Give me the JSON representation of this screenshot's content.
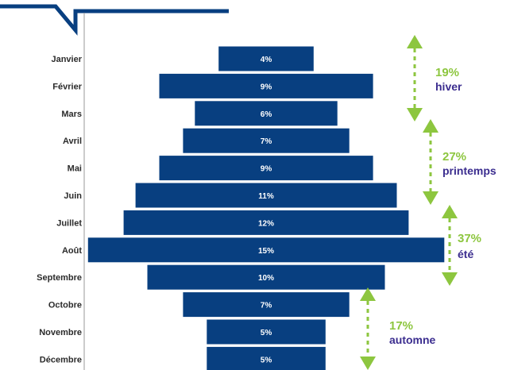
{
  "colors": {
    "bar": "#083f80",
    "accent_green": "#8dc63f",
    "season_text": "#3b2d8f",
    "axis": "#999999",
    "header": "#083f80"
  },
  "chart_data": {
    "type": "bar",
    "orientation": "horizontal-centered",
    "categories": [
      "Janvier",
      "Février",
      "Mars",
      "Avril",
      "Mai",
      "Juin",
      "Juillet",
      "Août",
      "Septembre",
      "Octobre",
      "Novembre",
      "Décembre"
    ],
    "values": [
      4,
      9,
      6,
      7,
      9,
      11,
      12,
      15,
      10,
      7,
      5,
      5
    ],
    "value_labels": [
      "4%",
      "9%",
      "6%",
      "7%",
      "9%",
      "11%",
      "12%",
      "15%",
      "10%",
      "7%",
      "5%",
      "5%"
    ],
    "unit": "%",
    "seasons": [
      {
        "pct": "19%",
        "name": "hiver",
        "from_index": 0,
        "to_index": 2
      },
      {
        "pct": "27%",
        "name": "printemps",
        "from_index": 2,
        "to_index": 5
      },
      {
        "pct": "37%",
        "name": "été",
        "from_index": 5,
        "to_index": 8
      },
      {
        "pct": "17%",
        "name": "automne",
        "from_index": 8,
        "to_index": 11
      }
    ]
  }
}
